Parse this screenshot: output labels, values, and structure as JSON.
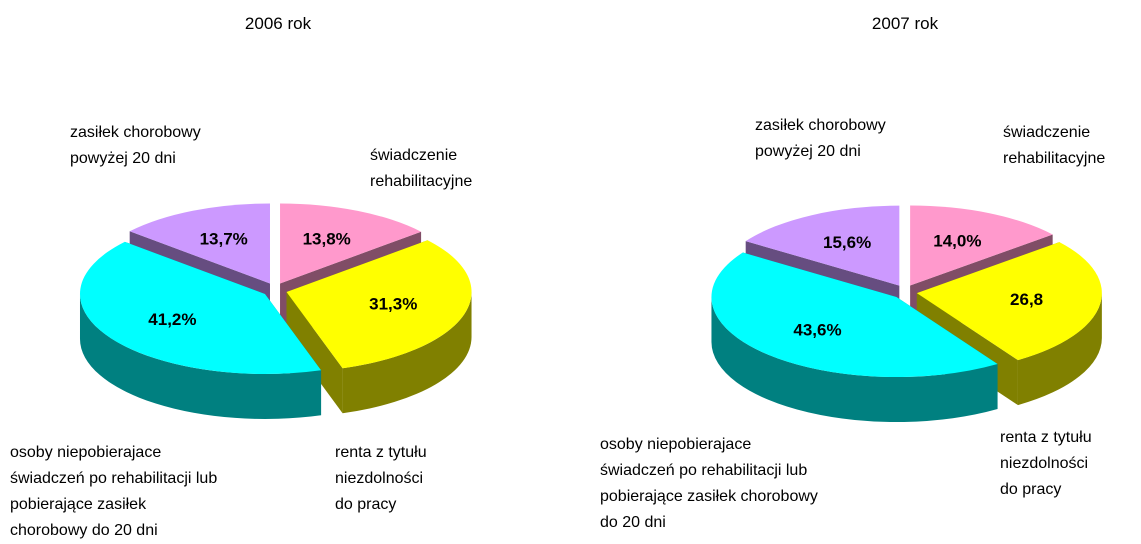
{
  "chart_data": [
    {
      "type": "pie",
      "title": "2006 rok",
      "categories": [
        "zasiłek chorobowy\npowyżej 20 dni",
        "świadczenie\nrehabilitacyjne",
        "renta z tytułu\nniezdolności\ndo pracy",
        "osoby niepobierajace\nświadczeń po rehabilitacji lub\npobierające zasiłek\nchorobowy do 20 dni"
      ],
      "values": [
        13.7,
        13.8,
        31.3,
        41.2
      ],
      "value_labels": [
        "13,7%",
        "13,8%",
        "31,3%",
        "41,2%"
      ],
      "colors": [
        "#cc99ff",
        "#ff99cc",
        "#ffff00",
        "#00ffff"
      ]
    },
    {
      "type": "pie",
      "title": "2007 rok",
      "categories": [
        "zasiłek chorobowy\npowyżej 20 dni",
        "świadczenie\nrehabilitacyjne",
        "renta z tytułu\nniezdolności\ndo pracy",
        "osoby niepobierajace\nświadczeń po rehabilitacji lub\npobierające zasiłek chorobowy\ndo 20 dni"
      ],
      "values": [
        15.6,
        14.0,
        26.8,
        43.6
      ],
      "value_labels": [
        "15,6%",
        "14,0%",
        "26,8",
        "43,6%"
      ],
      "colors": [
        "#cc99ff",
        "#ff99cc",
        "#ffff00",
        "#00ffff"
      ]
    }
  ]
}
